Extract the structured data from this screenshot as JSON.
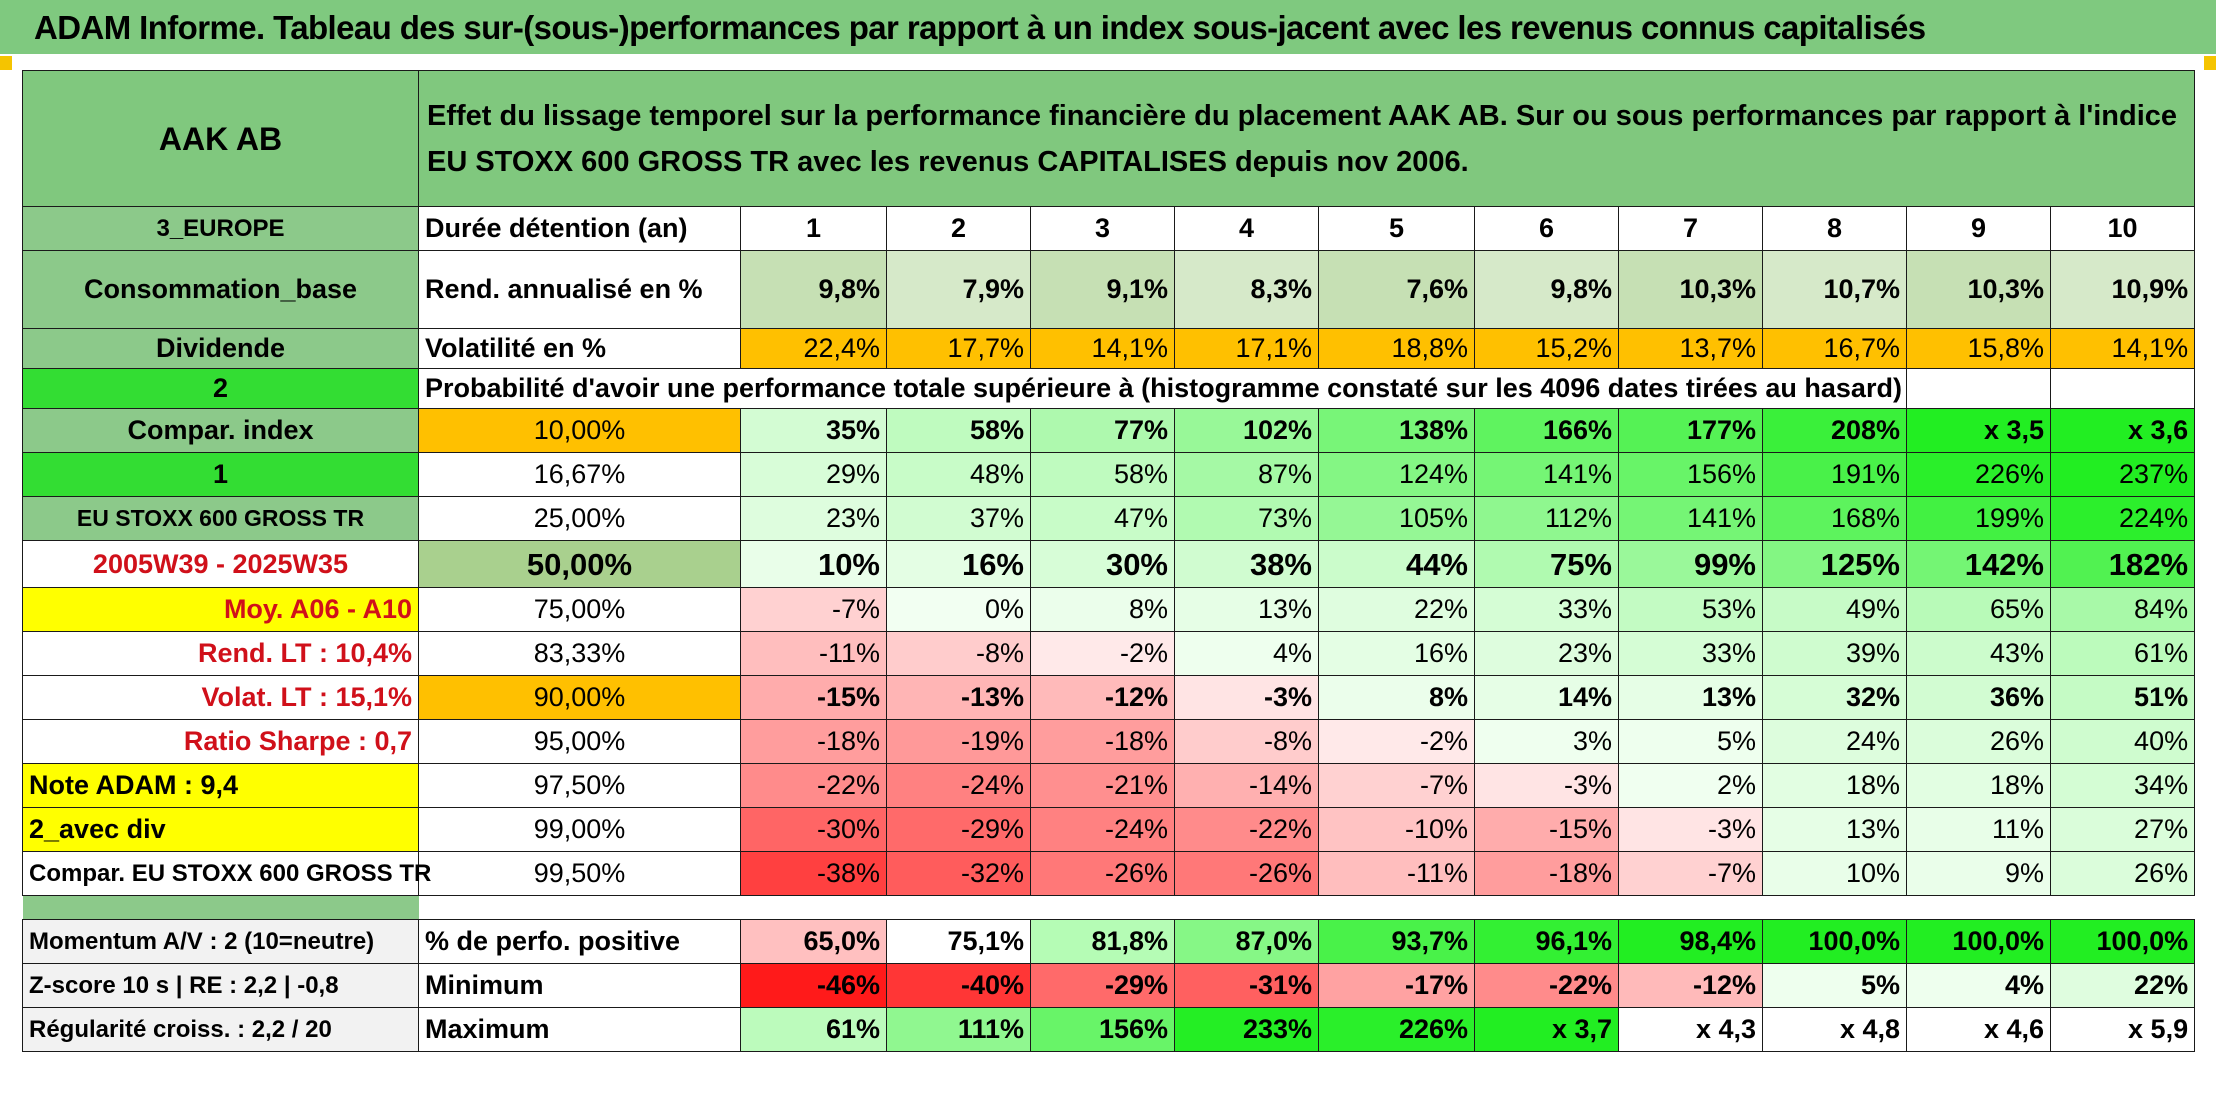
{
  "title": "ADAM Informe. Tableau des sur-(sous-)performances par rapport à un index sous-jacent avec les revenus connus capitalisés",
  "header": {
    "asset": "AAK AB",
    "description": "Effet du lissage temporel sur la performance financière du placement AAK AB. Sur ou sous performances par rapport à l'indice EU STOXX 600 GROSS TR avec les revenus CAPITALISES depuis nov 2006."
  },
  "left_labels": {
    "region": "3_EUROPE",
    "sector": "Consommation_base",
    "category": "Dividende",
    "code2": "2",
    "compar_index": "Compar. index",
    "code1": "1",
    "index_name": "EU STOXX 600 GROSS TR",
    "period": "2005W39 - 2025W35",
    "moy": "Moy. A06 - A10",
    "rend_lt": "Rend. LT :   10,4%",
    "volat_lt": "Volat. LT :   15,1%",
    "sharpe": "Ratio Sharpe :    0,7",
    "note": "Note ADAM : 9,4",
    "avec_div": "2_avec div",
    "compar_full": "Compar. EU STOXX 600 GROSS TR",
    "momentum": "Momentum A/V : 2 (10=neutre)",
    "zscore": "Z-score 10 s | RE : 2,2 | -0,8",
    "regularite": "Régularité croiss. : 2,2 / 20"
  },
  "durations": {
    "label": "Durée détention (an)",
    "values": [
      "1",
      "2",
      "3",
      "4",
      "5",
      "6",
      "7",
      "8",
      "9",
      "10"
    ]
  },
  "rend": {
    "label": "Rend. annualisé en %",
    "values": [
      "9,8%",
      "7,9%",
      "9,1%",
      "8,3%",
      "7,6%",
      "9,8%",
      "10,3%",
      "10,7%",
      "10,3%",
      "10,9%"
    ]
  },
  "vol": {
    "label": "Volatilité en %",
    "values": [
      "22,4%",
      "17,7%",
      "14,1%",
      "17,1%",
      "18,8%",
      "15,2%",
      "13,7%",
      "16,7%",
      "15,8%",
      "14,1%"
    ]
  },
  "proba_title": "Probabilité d'avoir une performance totale supérieure à (histogramme constaté sur les 4096 dates tirées au hasard)",
  "quantiles": [
    {
      "p": "10,00%",
      "v": [
        "35%",
        "58%",
        "77%",
        "102%",
        "138%",
        "166%",
        "177%",
        "208%",
        "x 3,5",
        "x 3,6"
      ]
    },
    {
      "p": "16,67%",
      "v": [
        "29%",
        "48%",
        "58%",
        "87%",
        "124%",
        "141%",
        "156%",
        "191%",
        "226%",
        "237%"
      ]
    },
    {
      "p": "25,00%",
      "v": [
        "23%",
        "37%",
        "47%",
        "73%",
        "105%",
        "112%",
        "141%",
        "168%",
        "199%",
        "224%"
      ]
    },
    {
      "p": "50,00%",
      "v": [
        "10%",
        "16%",
        "30%",
        "38%",
        "44%",
        "75%",
        "99%",
        "125%",
        "142%",
        "182%"
      ]
    },
    {
      "p": "75,00%",
      "v": [
        "-7%",
        "0%",
        "8%",
        "13%",
        "22%",
        "33%",
        "53%",
        "49%",
        "65%",
        "84%"
      ]
    },
    {
      "p": "83,33%",
      "v": [
        "-11%",
        "-8%",
        "-2%",
        "4%",
        "16%",
        "23%",
        "33%",
        "39%",
        "43%",
        "61%"
      ]
    },
    {
      "p": "90,00%",
      "v": [
        "-15%",
        "-13%",
        "-12%",
        "-3%",
        "8%",
        "14%",
        "13%",
        "32%",
        "36%",
        "51%"
      ]
    },
    {
      "p": "95,00%",
      "v": [
        "-18%",
        "-19%",
        "-18%",
        "-8%",
        "-2%",
        "3%",
        "5%",
        "24%",
        "26%",
        "40%"
      ]
    },
    {
      "p": "97,50%",
      "v": [
        "-22%",
        "-24%",
        "-21%",
        "-14%",
        "-7%",
        "-3%",
        "2%",
        "18%",
        "18%",
        "34%"
      ]
    },
    {
      "p": "99,00%",
      "v": [
        "-30%",
        "-29%",
        "-24%",
        "-22%",
        "-10%",
        "-15%",
        "-3%",
        "13%",
        "11%",
        "27%"
      ]
    },
    {
      "p": "99,50%",
      "v": [
        "-38%",
        "-32%",
        "-26%",
        "-26%",
        "-11%",
        "-18%",
        "-7%",
        "10%",
        "9%",
        "26%"
      ]
    }
  ],
  "positive": {
    "label": "% de perfo. positive",
    "values": [
      "65,0%",
      "75,1%",
      "81,8%",
      "87,0%",
      "93,7%",
      "96,1%",
      "98,4%",
      "100,0%",
      "100,0%",
      "100,0%"
    ]
  },
  "minimum": {
    "label": "Minimum",
    "values": [
      "-46%",
      "-40%",
      "-29%",
      "-31%",
      "-17%",
      "-22%",
      "-12%",
      "5%",
      "4%",
      "22%"
    ]
  },
  "maximum": {
    "label": "Maximum",
    "values": [
      "61%",
      "111%",
      "156%",
      "233%",
      "226%",
      "x 3,7",
      "x 4,3",
      "x 4,8",
      "x 4,6",
      "x 5,9"
    ]
  },
  "colors": {
    "title_green": "#7fc97f",
    "header_green": "#80c87e",
    "label_green": "#8cc98a",
    "bright_green": "#33dd33",
    "pale_green_rend": "#c6e0b4",
    "orange": "#ffc000",
    "yellow": "#ffff00",
    "red_text": "#d0101a"
  }
}
